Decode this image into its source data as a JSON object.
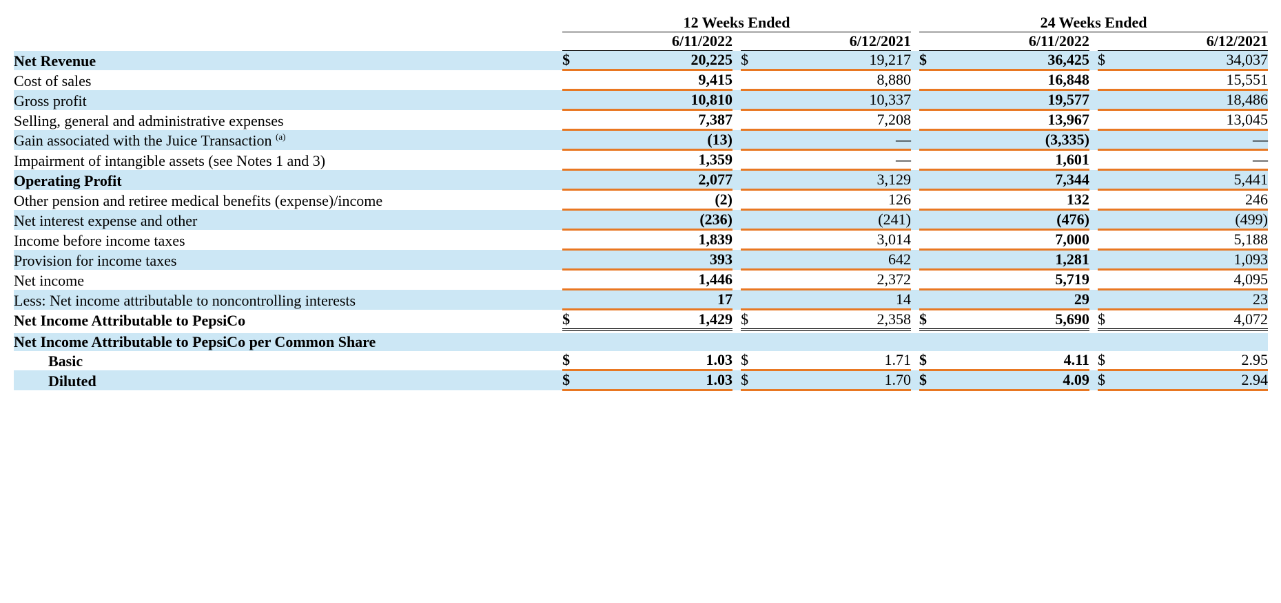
{
  "colors": {
    "shade_bg": "#cce7f5",
    "accent_underline": "#e87722",
    "rule": "#000000",
    "text": "#000000"
  },
  "typography": {
    "font_family": "Times New Roman",
    "font_size_pt": 16,
    "bold_weight": 700
  },
  "header": {
    "period_12w": "12 Weeks Ended",
    "period_24w": "24 Weeks Ended",
    "date_current": "6/11/2022",
    "date_prior": "6/12/2021"
  },
  "rows": [
    {
      "id": "net_revenue",
      "label": "Net Revenue",
      "bold_label": true,
      "shade": true,
      "indent": false,
      "sup": "",
      "currency": true,
      "bold_current": true,
      "top_rule": false,
      "top_double": false,
      "orange": true,
      "c12_cur": "20,225",
      "c12_pri": "19,217",
      "c24_cur": "36,425",
      "c24_pri": "34,037"
    },
    {
      "id": "cost_of_sales",
      "label": "Cost of sales",
      "bold_label": false,
      "shade": false,
      "indent": false,
      "sup": "",
      "currency": false,
      "bold_current": true,
      "top_rule": false,
      "top_double": false,
      "orange": true,
      "c12_cur": "9,415",
      "c12_pri": "8,880",
      "c24_cur": "16,848",
      "c24_pri": "15,551"
    },
    {
      "id": "gross_profit",
      "label": "Gross profit",
      "bold_label": false,
      "shade": true,
      "indent": false,
      "sup": "",
      "currency": false,
      "bold_current": true,
      "top_rule": true,
      "top_double": false,
      "orange": true,
      "c12_cur": "10,810",
      "c12_pri": "10,337",
      "c24_cur": "19,577",
      "c24_pri": "18,486"
    },
    {
      "id": "sg_a",
      "label": "Selling, general and administrative expenses",
      "bold_label": false,
      "shade": false,
      "indent": false,
      "sup": "",
      "currency": false,
      "bold_current": true,
      "top_rule": false,
      "top_double": false,
      "orange": true,
      "c12_cur": "7,387",
      "c12_pri": "7,208",
      "c24_cur": "13,967",
      "c24_pri": "13,045"
    },
    {
      "id": "gain_juice",
      "label": "Gain associated with the Juice Transaction ",
      "bold_label": false,
      "shade": true,
      "indent": false,
      "sup": "(a)",
      "currency": false,
      "bold_current": true,
      "top_rule": false,
      "top_double": false,
      "orange": true,
      "c12_cur": "(13)",
      "c12_pri": "—",
      "c24_cur": "(3,335)",
      "c24_pri": "—"
    },
    {
      "id": "impairment",
      "label": "Impairment of intangible assets (see Notes 1 and 3)",
      "bold_label": false,
      "shade": false,
      "indent": false,
      "sup": "",
      "currency": false,
      "bold_current": true,
      "top_rule": false,
      "top_double": false,
      "orange": true,
      "c12_cur": "1,359",
      "c12_pri": "—",
      "c24_cur": "1,601",
      "c24_pri": "—"
    },
    {
      "id": "operating_profit",
      "label": "Operating Profit",
      "bold_label": true,
      "shade": true,
      "indent": false,
      "sup": "",
      "currency": false,
      "bold_current": true,
      "top_rule": true,
      "top_double": false,
      "orange": true,
      "c12_cur": "2,077",
      "c12_pri": "3,129",
      "c24_cur": "7,344",
      "c24_pri": "5,441"
    },
    {
      "id": "other_pension",
      "label": "Other pension and retiree medical benefits (expense)/income",
      "bold_label": false,
      "shade": false,
      "indent": false,
      "sup": "",
      "currency": false,
      "bold_current": true,
      "top_rule": false,
      "top_double": false,
      "orange": true,
      "c12_cur": "(2)",
      "c12_pri": "126",
      "c24_cur": "132",
      "c24_pri": "246"
    },
    {
      "id": "net_interest",
      "label": "Net interest expense and other",
      "bold_label": false,
      "shade": true,
      "indent": false,
      "sup": "",
      "currency": false,
      "bold_current": true,
      "top_rule": false,
      "top_double": false,
      "orange": true,
      "c12_cur": "(236)",
      "c12_pri": "(241)",
      "c24_cur": "(476)",
      "c24_pri": "(499)"
    },
    {
      "id": "income_before_tax",
      "label": "Income before income taxes",
      "bold_label": false,
      "shade": false,
      "indent": false,
      "sup": "",
      "currency": false,
      "bold_current": true,
      "top_rule": true,
      "top_double": false,
      "orange": true,
      "c12_cur": "1,839",
      "c12_pri": "3,014",
      "c24_cur": "7,000",
      "c24_pri": "5,188"
    },
    {
      "id": "provision_tax",
      "label": "Provision for income taxes",
      "bold_label": false,
      "shade": true,
      "indent": false,
      "sup": "",
      "currency": false,
      "bold_current": true,
      "top_rule": false,
      "top_double": false,
      "orange": true,
      "c12_cur": "393",
      "c12_pri": "642",
      "c24_cur": "1,281",
      "c24_pri": "1,093"
    },
    {
      "id": "net_income",
      "label": "Net income",
      "bold_label": false,
      "shade": false,
      "indent": false,
      "sup": "",
      "currency": false,
      "bold_current": true,
      "top_rule": true,
      "top_double": false,
      "orange": true,
      "c12_cur": "1,446",
      "c12_pri": "2,372",
      "c24_cur": "5,719",
      "c24_pri": "4,095"
    },
    {
      "id": "less_nci",
      "label": "Less: Net income attributable to noncontrolling interests",
      "bold_label": false,
      "shade": true,
      "indent": false,
      "sup": "",
      "currency": false,
      "bold_current": true,
      "top_rule": false,
      "top_double": false,
      "orange": true,
      "c12_cur": "17",
      "c12_pri": "14",
      "c24_cur": "29",
      "c24_pri": "23"
    },
    {
      "id": "net_income_pepsico",
      "label": "Net Income Attributable to PepsiCo",
      "bold_label": true,
      "shade": false,
      "indent": false,
      "sup": "",
      "currency": true,
      "bold_current": true,
      "top_rule": true,
      "top_double": true,
      "orange": true,
      "c12_cur": "1,429",
      "c12_pri": "2,358",
      "c24_cur": "5,690",
      "c24_pri": "4,072"
    },
    {
      "id": "eps_header",
      "label": "Net Income Attributable to PepsiCo per Common Share",
      "bold_label": true,
      "shade": true,
      "indent": false,
      "sup": "",
      "currency": false,
      "bold_current": false,
      "top_rule": false,
      "top_double": false,
      "orange": false,
      "c12_cur": "",
      "c12_pri": "",
      "c24_cur": "",
      "c24_pri": ""
    },
    {
      "id": "eps_basic",
      "label": "Basic",
      "bold_label": true,
      "shade": false,
      "indent": true,
      "sup": "",
      "currency": true,
      "bold_current": true,
      "top_rule": false,
      "top_double": false,
      "orange": true,
      "c12_cur": "1.03",
      "c12_pri": "1.71",
      "c24_cur": "4.11",
      "c24_pri": "2.95"
    },
    {
      "id": "eps_diluted",
      "label": "Diluted",
      "bold_label": true,
      "shade": true,
      "indent": true,
      "sup": "",
      "currency": true,
      "bold_current": true,
      "top_rule": false,
      "top_double": false,
      "orange": true,
      "c12_cur": "1.03",
      "c12_pri": "1.70",
      "c24_cur": "4.09",
      "c24_pri": "2.94"
    }
  ]
}
